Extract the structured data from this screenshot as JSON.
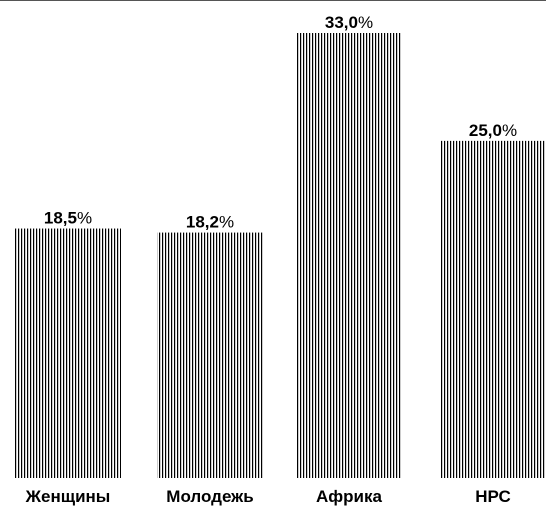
{
  "chart_data": {
    "type": "bar",
    "categories": [
      "Женщины",
      "Молодежь",
      "Африка",
      "НРС"
    ],
    "values": [
      18.5,
      18.2,
      33.0,
      25.0
    ],
    "value_labels": [
      "18,5",
      "18,2",
      "33,0",
      "25,0"
    ],
    "value_suffix": "%",
    "ylim": [
      0,
      33.0
    ],
    "bar_fill": "vertical-stripes",
    "colors": {
      "stripe": "#000000",
      "background": "#ffffff",
      "top_rule": "#555555"
    }
  }
}
